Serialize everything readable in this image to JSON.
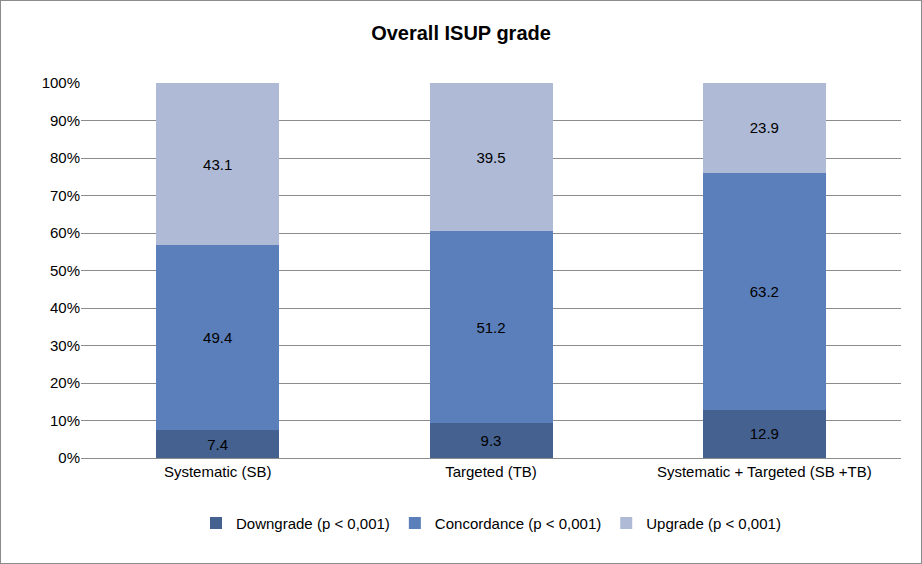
{
  "chart_data": {
    "type": "bar",
    "title": "Overall ISUP grade",
    "categories": [
      "Systematic (SB)",
      "Targeted (TB)",
      "Systematic + Targeted (SB +TB)"
    ],
    "stacked": true,
    "data_labels": true,
    "legend": "bottom",
    "grid": true,
    "ylim": [
      0,
      100
    ],
    "yticks": [
      {
        "value": 0,
        "label": "0%"
      },
      {
        "value": 10,
        "label": "10%"
      },
      {
        "value": 20,
        "label": "20%"
      },
      {
        "value": 30,
        "label": "30%"
      },
      {
        "value": 40,
        "label": "40%"
      },
      {
        "value": 50,
        "label": "50%"
      },
      {
        "value": 60,
        "label": "60%"
      },
      {
        "value": 70,
        "label": "70%"
      },
      {
        "value": 80,
        "label": "80%"
      },
      {
        "value": 90,
        "label": "90%"
      },
      {
        "value": 100,
        "label": "100%"
      }
    ],
    "series": [
      {
        "name": "Downgrade (p < 0,001)",
        "color": "#44618f",
        "values": [
          7.4,
          9.3,
          12.9
        ]
      },
      {
        "name": "Concordance (p < 0,001)",
        "color": "#5b7fba",
        "values": [
          49.4,
          51.2,
          63.2
        ]
      },
      {
        "name": "Upgrade (p < 0,001)",
        "color": "#aebad6",
        "values": [
          43.1,
          39.5,
          23.9
        ]
      }
    ]
  }
}
